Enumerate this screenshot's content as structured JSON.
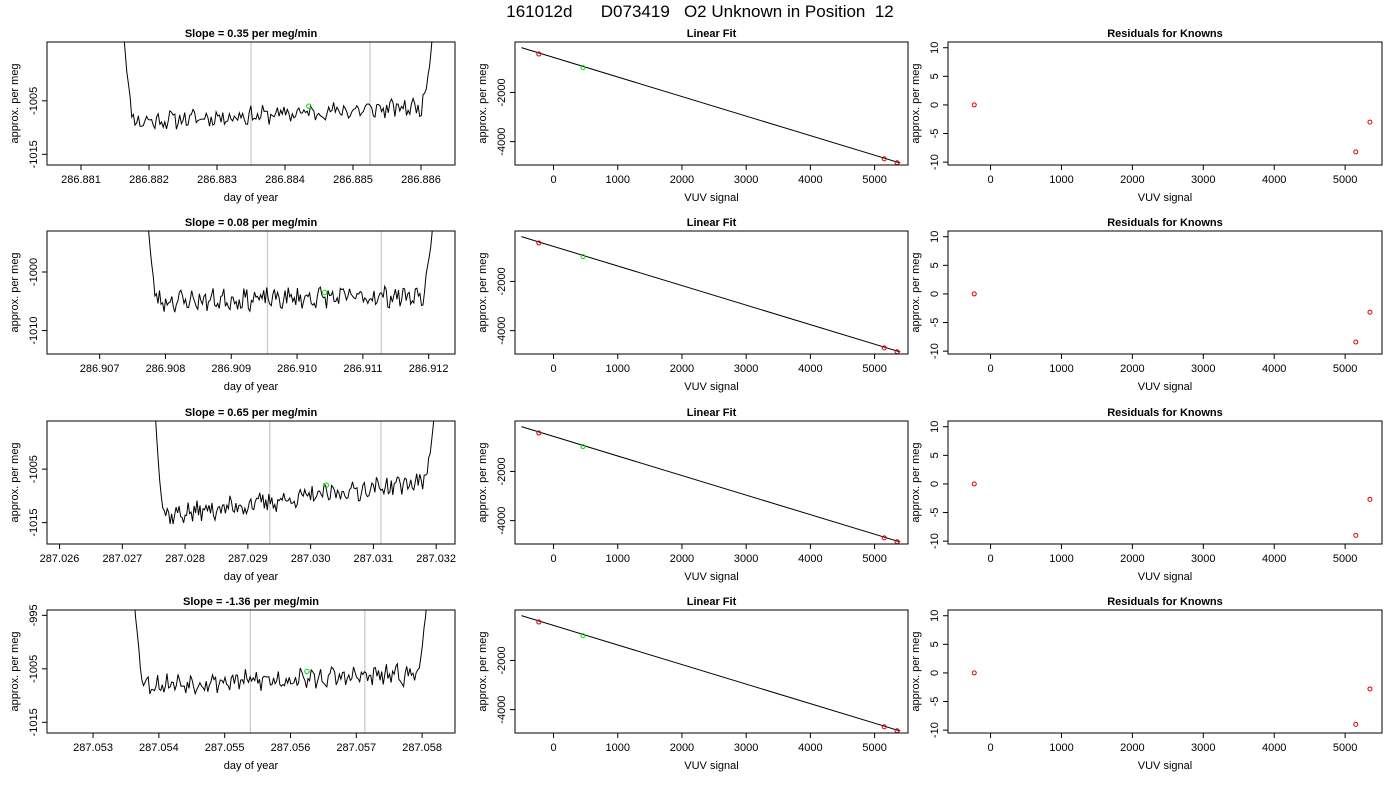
{
  "page_title": "161012d      D073419   O2 Unknown in Position  12",
  "colors": {
    "line": "#000000",
    "marker_green": "#00dd00",
    "marker_red": "#dd0000",
    "boundary": "#c8c8c8"
  },
  "chart_data": [
    {
      "type": "line",
      "row": 0,
      "col": 0,
      "title": "Slope =  0.35  per meg/min",
      "xlabel": "day of year",
      "ylabel": "approx. per meg",
      "xlim": [
        286.8805,
        286.8865
      ],
      "ylim": [
        -1017,
        -994
      ],
      "xticks": [
        286.881,
        286.882,
        286.883,
        286.884,
        286.885,
        286.886
      ],
      "xtick_labels": [
        "286.881",
        "286.882",
        "286.883",
        "286.884",
        "286.885",
        "286.886"
      ],
      "yticks": [
        -1015,
        -1005
      ],
      "ytick_labels": [
        "-1015",
        "-1005"
      ],
      "boundaries": [
        286.8835,
        286.88525
      ],
      "trace": {
        "x_start": 286.8816,
        "x_end": 286.8862,
        "baseline": [
          -1009,
          -1006
        ],
        "noise": 1.4,
        "seed": 11,
        "ramp_top": -994,
        "ramp_len": 8
      },
      "marker": {
        "x": 286.88435,
        "y": -1006
      }
    },
    {
      "type": "scatter",
      "row": 0,
      "col": 1,
      "title": "Linear Fit",
      "xlabel": "VUV signal",
      "ylabel": "approx. per meg",
      "xlim": [
        -600,
        5520
      ],
      "ylim": [
        -4950,
        50
      ],
      "xticks": [
        0,
        1000,
        2000,
        3000,
        4000,
        5000
      ],
      "xtick_labels": [
        "0",
        "1000",
        "2000",
        "3000",
        "4000",
        "5000"
      ],
      "yticks": [
        -4000,
        -2000
      ],
      "ytick_labels": [
        "-4000",
        "-2000"
      ],
      "fit": {
        "x0": -500,
        "y0": -180,
        "x1": 5400,
        "y1": -4870
      },
      "points": [
        {
          "x": -230,
          "y": -440
        },
        {
          "x": 5150,
          "y": -4700
        },
        {
          "x": 5350,
          "y": -4860
        }
      ],
      "marker": {
        "x": 460,
        "y": -990
      }
    },
    {
      "type": "scatter",
      "row": 0,
      "col": 2,
      "title": "Residuals for Knowns",
      "xlabel": "VUV signal",
      "ylabel": "approx. per meg",
      "xlim": [
        -600,
        5520
      ],
      "ylim": [
        -10.5,
        11
      ],
      "xticks": [
        0,
        1000,
        2000,
        3000,
        4000,
        5000
      ],
      "xtick_labels": [
        "0",
        "1000",
        "2000",
        "3000",
        "4000",
        "5000"
      ],
      "yticks": [
        -10,
        -5,
        0,
        5,
        10
      ],
      "ytick_labels": [
        "-10",
        "-5",
        "0",
        "5",
        "10"
      ],
      "points": [
        {
          "x": -230,
          "y": 0
        },
        {
          "x": 5150,
          "y": -8.2
        },
        {
          "x": 5350,
          "y": -3.0
        }
      ]
    },
    {
      "type": "line",
      "row": 1,
      "col": 0,
      "title": "Slope =  0.08  per meg/min",
      "xlabel": "day of year",
      "ylabel": "approx. per meg",
      "xlim": [
        286.9062,
        286.9124
      ],
      "ylim": [
        -1014,
        -993
      ],
      "xticks": [
        286.907,
        286.908,
        286.909,
        286.91,
        286.911,
        286.912
      ],
      "xtick_labels": [
        "286.907",
        "286.908",
        "286.909",
        "286.910",
        "286.911",
        "286.912"
      ],
      "yticks": [
        -1010,
        -1000
      ],
      "ytick_labels": [
        "-1010",
        "-1000"
      ],
      "boundaries": [
        286.90955,
        286.91128
      ],
      "trace": {
        "x_start": 286.9077,
        "x_end": 286.9121,
        "baseline": [
          -1005,
          -1004
        ],
        "noise": 1.5,
        "seed": 23,
        "ramp_top": -993,
        "ramp_len": 8
      },
      "marker": {
        "x": 286.91042,
        "y": -1003.5
      }
    },
    {
      "type": "scatter",
      "row": 1,
      "col": 1,
      "title": "Linear Fit",
      "xlabel": "VUV signal",
      "ylabel": "approx. per meg",
      "xlim": [
        -600,
        5520
      ],
      "ylim": [
        -4950,
        50
      ],
      "xticks": [
        0,
        1000,
        2000,
        3000,
        4000,
        5000
      ],
      "xtick_labels": [
        "0",
        "1000",
        "2000",
        "3000",
        "4000",
        "5000"
      ],
      "yticks": [
        -4000,
        -2000
      ],
      "ytick_labels": [
        "-4000",
        "-2000"
      ],
      "fit": {
        "x0": -500,
        "y0": -180,
        "x1": 5400,
        "y1": -4870
      },
      "points": [
        {
          "x": -230,
          "y": -440
        },
        {
          "x": 5150,
          "y": -4700
        },
        {
          "x": 5350,
          "y": -4860
        }
      ],
      "marker": {
        "x": 460,
        "y": -990
      }
    },
    {
      "type": "scatter",
      "row": 1,
      "col": 2,
      "title": "Residuals for Knowns",
      "xlabel": "VUV signal",
      "ylabel": "approx. per meg",
      "xlim": [
        -600,
        5520
      ],
      "ylim": [
        -10.5,
        11
      ],
      "xticks": [
        0,
        1000,
        2000,
        3000,
        4000,
        5000
      ],
      "xtick_labels": [
        "0",
        "1000",
        "2000",
        "3000",
        "4000",
        "5000"
      ],
      "yticks": [
        -10,
        -5,
        0,
        5,
        10
      ],
      "ytick_labels": [
        "-10",
        "-5",
        "0",
        "5",
        "10"
      ],
      "points": [
        {
          "x": -230,
          "y": 0
        },
        {
          "x": 5150,
          "y": -8.4
        },
        {
          "x": 5350,
          "y": -3.2
        }
      ]
    },
    {
      "type": "line",
      "row": 2,
      "col": 0,
      "title": "Slope =  0.65  per meg/min",
      "xlabel": "day of year",
      "ylabel": "approx. per meg",
      "xlim": [
        287.0258,
        287.0323
      ],
      "ylim": [
        -1019,
        -996
      ],
      "xticks": [
        287.026,
        287.027,
        287.028,
        287.029,
        287.03,
        287.031,
        287.032
      ],
      "xtick_labels": [
        "287.026",
        "287.027",
        "287.028",
        "287.029",
        "287.030",
        "287.031",
        "287.032"
      ],
      "yticks": [
        -1015,
        -1005
      ],
      "ytick_labels": [
        "-1015",
        "-1005"
      ],
      "boundaries": [
        287.02935,
        287.03112
      ],
      "trace": {
        "x_start": 287.0275,
        "x_end": 287.032,
        "baseline": [
          -1014,
          -1007
        ],
        "noise": 1.6,
        "seed": 37,
        "ramp_top": -996,
        "ramp_len": 8
      },
      "marker": {
        "x": 287.03025,
        "y": -1008
      }
    },
    {
      "type": "scatter",
      "row": 2,
      "col": 1,
      "title": "Linear Fit",
      "xlabel": "VUV signal",
      "ylabel": "approx. per meg",
      "xlim": [
        -600,
        5520
      ],
      "ylim": [
        -4950,
        50
      ],
      "xticks": [
        0,
        1000,
        2000,
        3000,
        4000,
        5000
      ],
      "xtick_labels": [
        "0",
        "1000",
        "2000",
        "3000",
        "4000",
        "5000"
      ],
      "yticks": [
        -4000,
        -2000
      ],
      "ytick_labels": [
        "-4000",
        "-2000"
      ],
      "fit": {
        "x0": -500,
        "y0": -180,
        "x1": 5400,
        "y1": -4870
      },
      "points": [
        {
          "x": -230,
          "y": -440
        },
        {
          "x": 5150,
          "y": -4700
        },
        {
          "x": 5350,
          "y": -4860
        }
      ],
      "marker": {
        "x": 460,
        "y": -990
      }
    },
    {
      "type": "scatter",
      "row": 2,
      "col": 2,
      "title": "Residuals for Knowns",
      "xlabel": "VUV signal",
      "ylabel": "approx. per meg",
      "xlim": [
        -600,
        5520
      ],
      "ylim": [
        -10.5,
        11
      ],
      "xticks": [
        0,
        1000,
        2000,
        3000,
        4000,
        5000
      ],
      "xtick_labels": [
        "0",
        "1000",
        "2000",
        "3000",
        "4000",
        "5000"
      ],
      "yticks": [
        -10,
        -5,
        0,
        5,
        10
      ],
      "ytick_labels": [
        "-10",
        "-5",
        "0",
        "5",
        "10"
      ],
      "points": [
        {
          "x": -230,
          "y": 0
        },
        {
          "x": 5150,
          "y": -9.0
        },
        {
          "x": 5350,
          "y": -2.7
        }
      ]
    },
    {
      "type": "line",
      "row": 3,
      "col": 0,
      "title": "Slope =  -1.36  per meg/min",
      "xlabel": "day of year",
      "ylabel": "approx. per meg",
      "xlim": [
        287.0523,
        287.0585
      ],
      "ylim": [
        -1017,
        -994
      ],
      "xticks": [
        287.053,
        287.054,
        287.055,
        287.056,
        287.057,
        287.058
      ],
      "xtick_labels": [
        "287.053",
        "287.054",
        "287.055",
        "287.056",
        "287.057",
        "287.058"
      ],
      "yticks": [
        -1015,
        -1005,
        -995
      ],
      "ytick_labels": [
        "-1015",
        "-1005",
        "-995"
      ],
      "boundaries": [
        287.05539,
        287.05713
      ],
      "trace": {
        "x_start": 287.0536,
        "x_end": 287.0581,
        "baseline": [
          -1008,
          -1006
        ],
        "noise": 1.6,
        "seed": 53,
        "ramp_top": -994,
        "ramp_len": 8
      },
      "marker": {
        "x": 287.05625,
        "y": -1005.5
      }
    },
    {
      "type": "scatter",
      "row": 3,
      "col": 1,
      "title": "Linear Fit",
      "xlabel": "VUV signal",
      "ylabel": "approx. per meg",
      "xlim": [
        -600,
        5520
      ],
      "ylim": [
        -4950,
        50
      ],
      "xticks": [
        0,
        1000,
        2000,
        3000,
        4000,
        5000
      ],
      "xtick_labels": [
        "0",
        "1000",
        "2000",
        "3000",
        "4000",
        "5000"
      ],
      "yticks": [
        -4000,
        -2000
      ],
      "ytick_labels": [
        "-4000",
        "-2000"
      ],
      "fit": {
        "x0": -500,
        "y0": -180,
        "x1": 5400,
        "y1": -4870
      },
      "points": [
        {
          "x": -230,
          "y": -440
        },
        {
          "x": 5150,
          "y": -4700
        },
        {
          "x": 5350,
          "y": -4860
        }
      ],
      "marker": {
        "x": 460,
        "y": -990
      }
    },
    {
      "type": "scatter",
      "row": 3,
      "col": 2,
      "title": "Residuals for Knowns",
      "xlabel": "VUV signal",
      "ylabel": "approx. per meg",
      "xlim": [
        -600,
        5520
      ],
      "ylim": [
        -10.5,
        11
      ],
      "xticks": [
        0,
        1000,
        2000,
        3000,
        4000,
        5000
      ],
      "xtick_labels": [
        "0",
        "1000",
        "2000",
        "3000",
        "4000",
        "5000"
      ],
      "yticks": [
        -10,
        -5,
        0,
        5,
        10
      ],
      "ytick_labels": [
        "-10",
        "-5",
        "0",
        "5",
        "10"
      ],
      "points": [
        {
          "x": -230,
          "y": 0
        },
        {
          "x": 5150,
          "y": -9.0
        },
        {
          "x": 5350,
          "y": -2.8
        }
      ]
    }
  ]
}
